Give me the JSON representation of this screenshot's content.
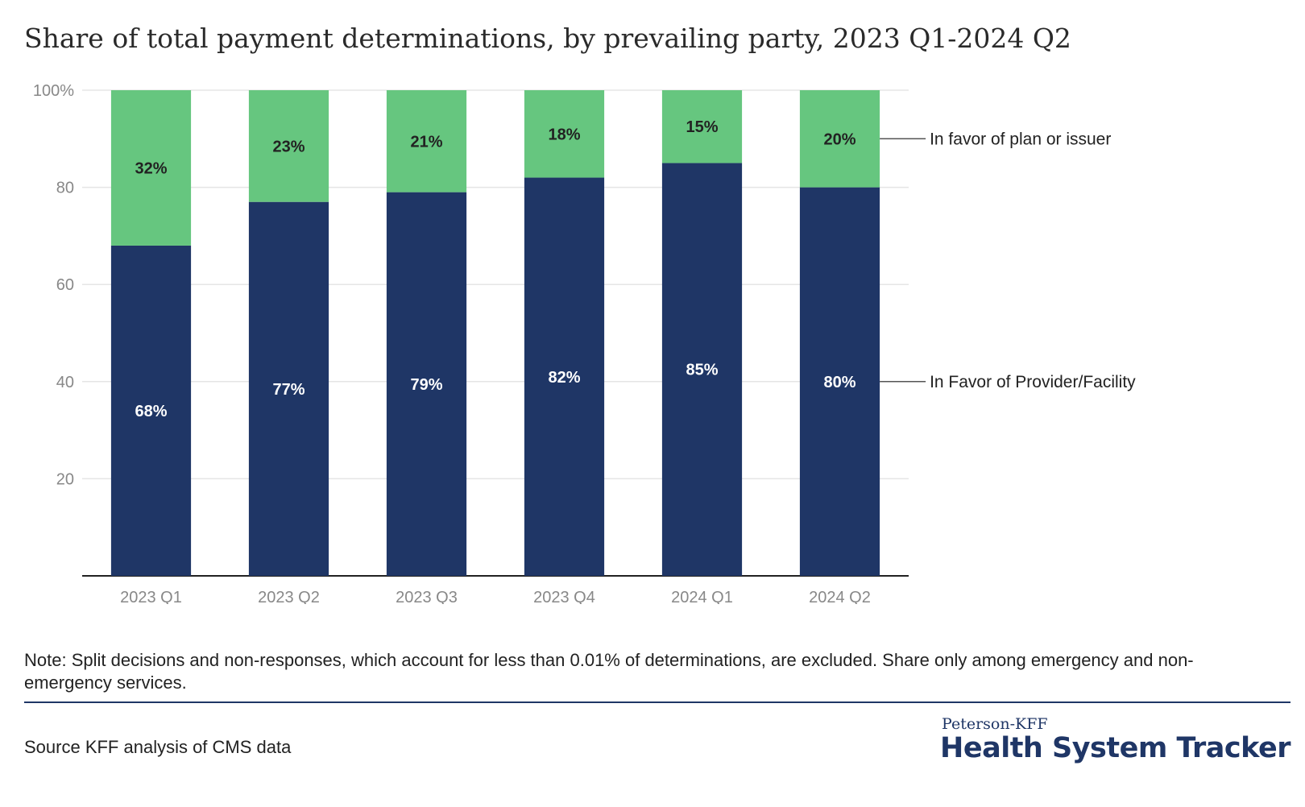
{
  "title": "Share of total payment determinations, by prevailing party, 2023 Q1-2024 Q2",
  "note": "Note: Split decisions and non-responses, which account for less than 0.01% of determinations, are excluded. Share only among emergency and non-emergency services.",
  "source": "Source KFF analysis of CMS data",
  "logo": {
    "top": "Peterson-KFF",
    "main": "Health System Tracker"
  },
  "colors": {
    "provider": "#1f3666",
    "plan": "#66c67f",
    "grid": "#e5e5e5",
    "axis": "#222222",
    "tick": "#888888"
  },
  "chart_data": {
    "type": "bar",
    "stacked": true,
    "categories": [
      "2023 Q1",
      "2023 Q2",
      "2023 Q3",
      "2023 Q4",
      "2024 Q1",
      "2024 Q2"
    ],
    "series": [
      {
        "name": "In Favor of Provider/Facility",
        "values": [
          68,
          77,
          79,
          82,
          85,
          80
        ],
        "labels": [
          "68%",
          "77%",
          "79%",
          "82%",
          "85%",
          "80%"
        ]
      },
      {
        "name": "In favor of plan or issuer",
        "values": [
          32,
          23,
          21,
          18,
          15,
          20
        ],
        "labels": [
          "32%",
          "23%",
          "21%",
          "18%",
          "15%",
          "20%"
        ]
      }
    ],
    "yticks": [
      20,
      40,
      60,
      80,
      100
    ],
    "ytick_labels": [
      "20",
      "40",
      "60",
      "80",
      "100%"
    ],
    "ylim": [
      0,
      100
    ],
    "grid": true,
    "legend": "right, labels pointing to last bar"
  }
}
